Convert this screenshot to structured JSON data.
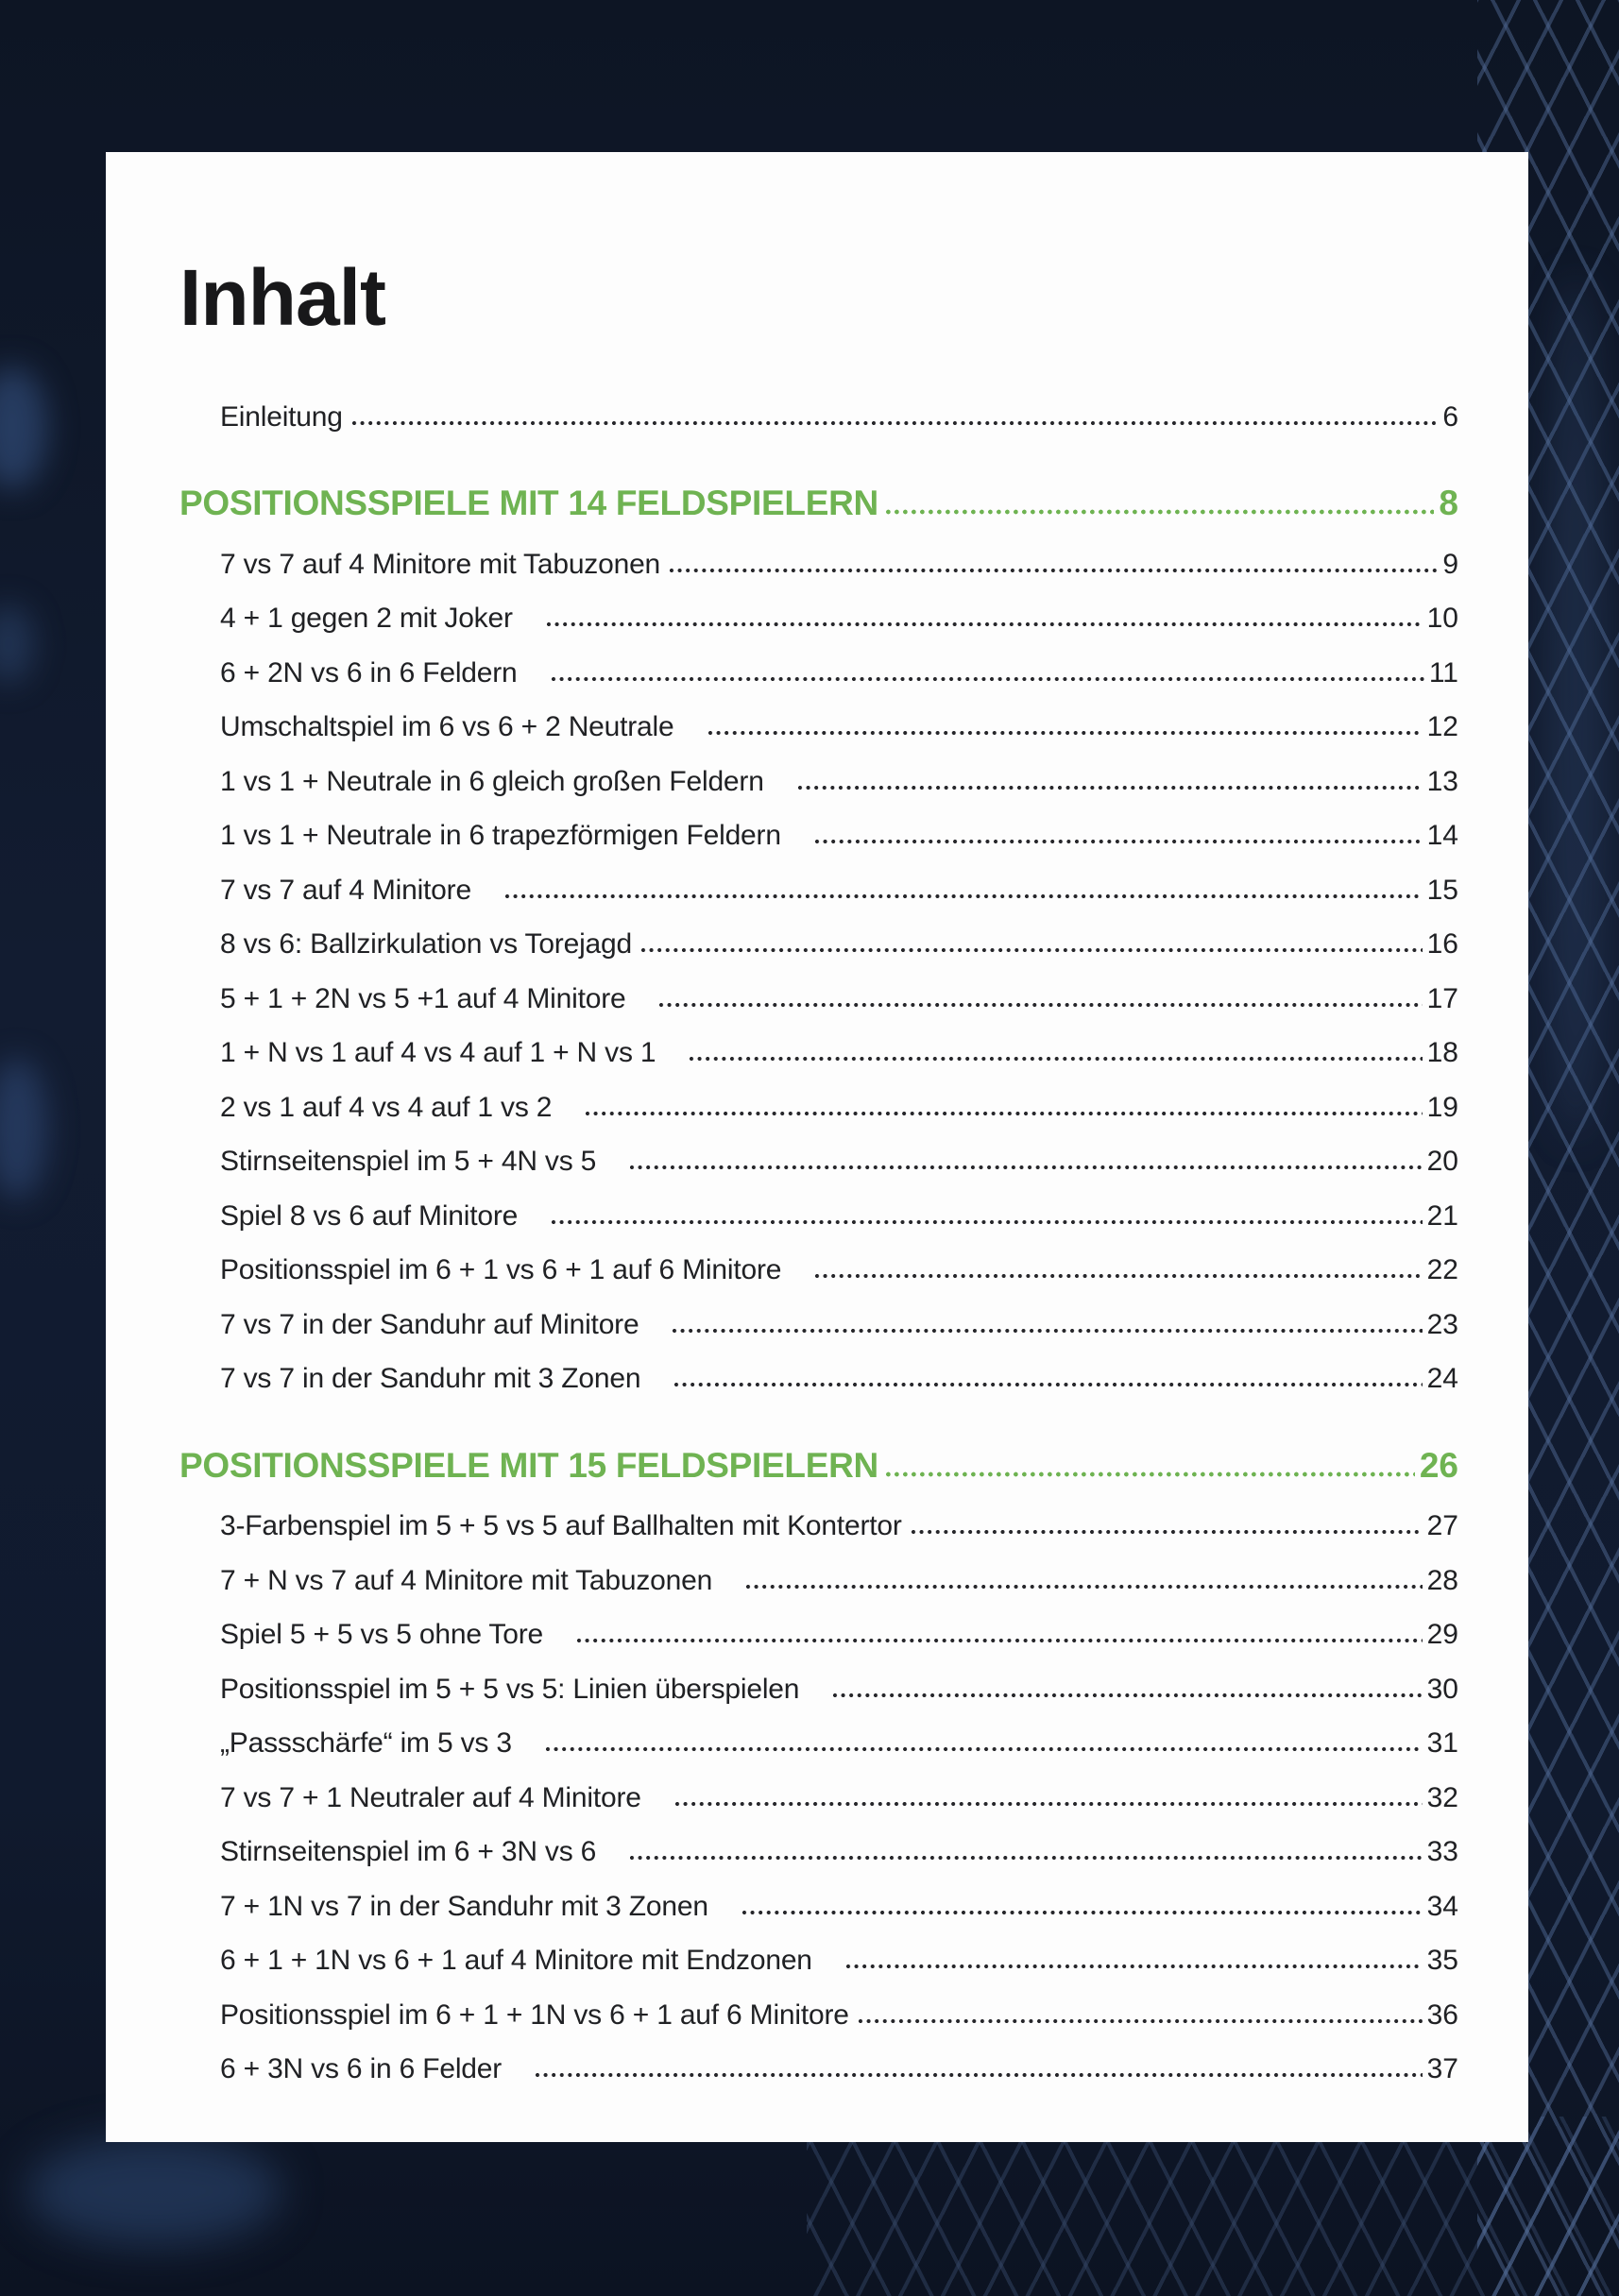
{
  "page": {
    "title": "Inhalt",
    "colors": {
      "background_navy": "#111b30",
      "card_white": "#fdfdfd",
      "accent_green": "#6fb352",
      "text_black": "#202124"
    }
  },
  "toc": {
    "intro": {
      "label": "Einleitung",
      "page": "6"
    },
    "sections": [
      {
        "heading": "POSITIONSSPIELE MIT 14 FELDSPIELERN",
        "page": "8",
        "entries": [
          {
            "label": "7 vs 7 auf 4 Minitore mit Tabuzonen",
            "page": "9"
          },
          {
            "label": "4 + 1 gegen 2 mit Joker",
            "page": "10"
          },
          {
            "label": "6 + 2N vs 6 in 6 Feldern",
            "page": "11"
          },
          {
            "label": "Umschaltspiel im 6 vs 6 + 2 Neutrale",
            "page": "12"
          },
          {
            "label": "1 vs 1 + Neutrale in 6 gleich großen Feldern",
            "page": "13"
          },
          {
            "label": "1 vs 1 + Neutrale in 6 trapezförmigen Feldern",
            "page": "14"
          },
          {
            "label": "7 vs 7 auf 4 Minitore",
            "page": "15"
          },
          {
            "label": "8 vs 6: Ballzirkulation vs Torejagd",
            "page": "16"
          },
          {
            "label": "5 + 1 + 2N vs 5 +1 auf 4 Minitore",
            "page": "17"
          },
          {
            "label": "1 + N vs 1 auf 4 vs 4 auf 1 + N vs 1",
            "page": "18"
          },
          {
            "label": "2 vs 1 auf 4 vs 4 auf 1 vs 2",
            "page": "19"
          },
          {
            "label": "Stirnseitenspiel im 5 + 4N vs 5",
            "page": "20"
          },
          {
            "label": "Spiel 8 vs 6 auf Minitore",
            "page": "21"
          },
          {
            "label": "Positionsspiel im 6 + 1 vs 6 + 1 auf 6 Minitore",
            "page": "22"
          },
          {
            "label": "7 vs 7 in der Sanduhr auf Minitore",
            "page": "23"
          },
          {
            "label": "7 vs 7 in der Sanduhr mit 3 Zonen",
            "page": "24"
          }
        ]
      },
      {
        "heading": "POSITIONSSPIELE MIT 15 FELDSPIELERN",
        "page": "26",
        "entries": [
          {
            "label": "3-Farbenspiel im 5 + 5 vs 5 auf Ballhalten mit Kontertor",
            "page": "27"
          },
          {
            "label": "7 + N vs 7 auf 4 Minitore mit Tabuzonen",
            "page": "28"
          },
          {
            "label": "Spiel 5 + 5 vs 5 ohne Tore",
            "page": "29"
          },
          {
            "label": "Positionsspiel im 5 + 5 vs 5: Linien überspielen",
            "page": "30"
          },
          {
            "label": "„Passschärfe“ im 5 vs 3",
            "page": "31"
          },
          {
            "label": "7 vs 7 + 1 Neutraler auf 4 Minitore",
            "page": "32"
          },
          {
            "label": "Stirnseitenspiel im 6 + 3N vs 6",
            "page": "33"
          },
          {
            "label": "7 + 1N vs 7 in der Sanduhr mit 3 Zonen",
            "page": "34"
          },
          {
            "label": "6 + 1 + 1N vs 6 + 1 auf 4 Minitore mit Endzonen",
            "page": "35"
          },
          {
            "label": "Positionsspiel im 6 + 1 + 1N vs 6 + 1 auf 6 Minitore",
            "page": "36"
          },
          {
            "label": "6 + 3N vs 6 in 6 Felder",
            "page": "37"
          }
        ]
      }
    ]
  }
}
